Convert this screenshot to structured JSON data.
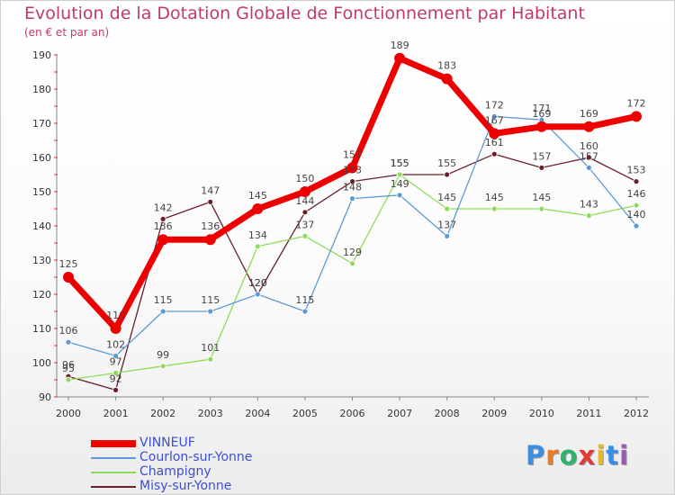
{
  "title": "Evolution de la Dotation Globale de Fonctionnement par Habitant",
  "subtitle": "(en € et par an)",
  "logo": {
    "letters": [
      "P",
      "r",
      "o",
      "x",
      "i",
      "t",
      "i"
    ],
    "colors": [
      "#3a8ee6",
      "#f07a1e",
      "#2fb36b",
      "#e23a3a",
      "#f0b81e",
      "#3a8ee6",
      "#9b59b6"
    ]
  },
  "chart_data": {
    "type": "line",
    "title": "Evolution de la Dotation Globale de Fonctionnement par Habitant",
    "subtitle": "(en € et par an)",
    "xlabel": "",
    "ylabel": "",
    "x": [
      "2000",
      "2001",
      "2002",
      "2003",
      "2004",
      "2005",
      "2006",
      "2007",
      "2008",
      "2009",
      "2010",
      "2011",
      "2012"
    ],
    "ylim": [
      90,
      190
    ],
    "yticks": [
      90,
      100,
      110,
      120,
      130,
      140,
      150,
      160,
      170,
      180,
      190
    ],
    "grid": false,
    "legend_position": "bottom-left",
    "series": [
      {
        "name": "VINNEUF",
        "color": "#ee0000",
        "values": [
          125,
          110,
          136,
          136,
          145,
          150,
          157,
          189,
          183,
          167,
          169,
          169,
          172
        ]
      },
      {
        "name": "Courlon-sur-Yonne",
        "color": "#5b9bd5",
        "values": [
          106,
          102,
          115,
          115,
          120,
          115,
          148,
          149,
          137,
          172,
          171,
          157,
          140
        ]
      },
      {
        "name": "Champigny",
        "color": "#8fdc5a",
        "values": [
          95,
          97,
          99,
          101,
          134,
          137,
          129,
          155,
          145,
          145,
          145,
          143,
          146
        ]
      },
      {
        "name": "Misy-sur-Yonne",
        "color": "#6b1f2b",
        "values": [
          96,
          92,
          142,
          147,
          120,
          144,
          153,
          155,
          155,
          161,
          157,
          160,
          153
        ]
      }
    ]
  }
}
